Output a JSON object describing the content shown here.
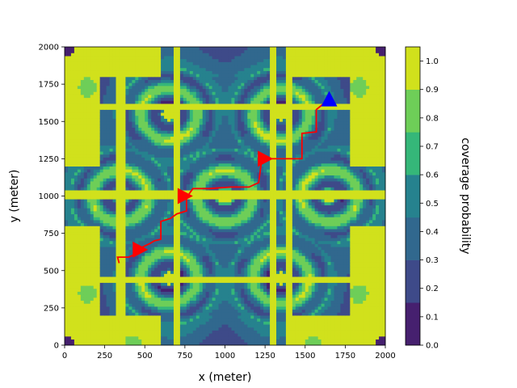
{
  "chart_data": {
    "type": "heatmap",
    "title": "",
    "xlabel": "x (meter)",
    "ylabel": "y (meter)",
    "xlim": [
      0,
      2000
    ],
    "ylim": [
      0,
      2000
    ],
    "xticks": [
      "0",
      "250",
      "500",
      "750",
      "1000",
      "1250",
      "1500",
      "1750",
      "2000"
    ],
    "yticks": [
      "0",
      "250",
      "500",
      "750",
      "1000",
      "1250",
      "1500",
      "1750",
      "2000"
    ],
    "grid": false,
    "colorbar": {
      "label": "coverage probability",
      "ticks": [
        "0.0",
        "0.1",
        "0.2",
        "0.3",
        "0.4",
        "0.5",
        "0.6",
        "0.7",
        "0.8",
        "0.9",
        "1.0"
      ],
      "range": [
        0.0,
        1.05
      ],
      "levels": [
        0.0,
        0.15,
        0.3,
        0.45,
        0.6,
        0.75,
        0.9,
        1.05
      ],
      "colors": [
        "#46206f",
        "#3e4a89",
        "#31688e",
        "#26828e",
        "#35b779",
        "#6ece58",
        "#d1e11c"
      ]
    },
    "base_stations": [
      {
        "x": 1000,
        "y": 1000
      },
      {
        "x": 350,
        "y": 1000
      },
      {
        "x": 1650,
        "y": 1000
      },
      {
        "x": 650,
        "y": 1550
      },
      {
        "x": 1350,
        "y": 1550
      },
      {
        "x": 650,
        "y": 450
      },
      {
        "x": 1350,
        "y": 450
      }
    ],
    "road_x": [
      350,
      700,
      1300,
      1400
    ],
    "road_y": [
      1600,
      1010,
      440
    ],
    "trajectory": {
      "color": "#ff0000",
      "points": [
        [
          340,
          550
        ],
        [
          330,
          590
        ],
        [
          400,
          590
        ],
        [
          440,
          610
        ],
        [
          470,
          650
        ],
        [
          530,
          680
        ],
        [
          560,
          700
        ],
        [
          600,
          710
        ],
        [
          600,
          830
        ],
        [
          660,
          850
        ],
        [
          700,
          880
        ],
        [
          760,
          900
        ],
        [
          760,
          990
        ],
        [
          800,
          1050
        ],
        [
          900,
          1050
        ],
        [
          1040,
          1060
        ],
        [
          1150,
          1060
        ],
        [
          1210,
          1090
        ],
        [
          1230,
          1250
        ],
        [
          1480,
          1250
        ],
        [
          1480,
          1420
        ],
        [
          1570,
          1430
        ],
        [
          1570,
          1580
        ],
        [
          1650,
          1650
        ]
      ]
    },
    "markers": [
      {
        "type": "triangle-right",
        "color": "#ff0000",
        "x": 470,
        "y": 640
      },
      {
        "type": "triangle-right",
        "color": "#ff0000",
        "x": 750,
        "y": 1000
      },
      {
        "type": "triangle-right",
        "color": "#ff0000",
        "x": 1250,
        "y": 1250
      },
      {
        "type": "triangle-up",
        "color": "#0000ff",
        "x": 1650,
        "y": 1650
      }
    ]
  }
}
